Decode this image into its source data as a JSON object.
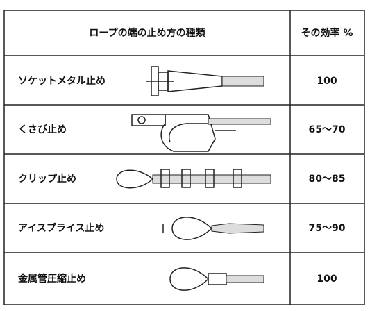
{
  "table": {
    "header": [
      "ロープの端の止め方の種類",
      "その効率 %"
    ],
    "rows": [
      [
        "ソケットメタル止め",
        "100"
      ],
      [
        "くさび止め",
        "65～70"
      ],
      [
        "クリップ止め",
        "80～85"
      ],
      [
        "アイスプライス止め",
        "75～90"
      ],
      [
        "金属管圧縮止め",
        "100"
      ]
    ]
  }
}
